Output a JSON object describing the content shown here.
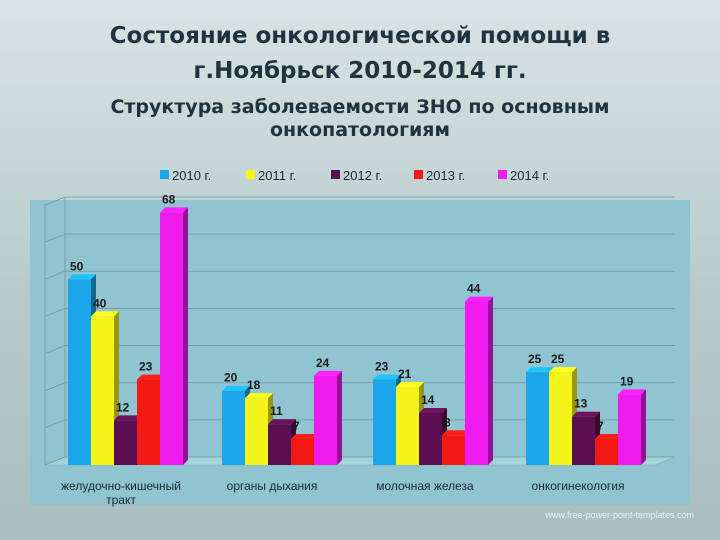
{
  "slide": {
    "title_line1": "Состояние онкологической помощи в",
    "title_line2": "г.Ноябрьск 2010-2014 гг.",
    "subtitle_line1": "Структура заболеваемости ЗНО по основным",
    "subtitle_line2": "онкопатологиям",
    "footer": "www.free-power-point-templates.com"
  },
  "chart_data": {
    "type": "bar",
    "title": "Структура заболеваемости ЗНО по основным онкопатологиям",
    "categories": [
      [
        "желудочно-кишечный",
        "тракт"
      ],
      [
        "органы дыхания"
      ],
      [
        "молочная железа"
      ],
      [
        "онкогинекология"
      ]
    ],
    "series": [
      {
        "name": "2010 г.",
        "color": "#1aa6e8",
        "values": [
          50,
          20,
          23,
          25
        ]
      },
      {
        "name": "2011 г.",
        "color": "#f4f41a",
        "values": [
          40,
          18,
          21,
          25
        ]
      },
      {
        "name": "2012 г.",
        "color": "#5a1050",
        "values": [
          12,
          11,
          14,
          13
        ]
      },
      {
        "name": "2013 г.",
        "color": "#f21a12",
        "values": [
          23,
          7,
          8,
          7
        ]
      },
      {
        "name": "2014 г.",
        "color": "#ee1aee",
        "values": [
          68,
          24,
          44,
          19
        ]
      }
    ],
    "ylim": [
      0,
      70
    ],
    "legend": "top",
    "grid": true,
    "xlabel": "",
    "ylabel": ""
  }
}
